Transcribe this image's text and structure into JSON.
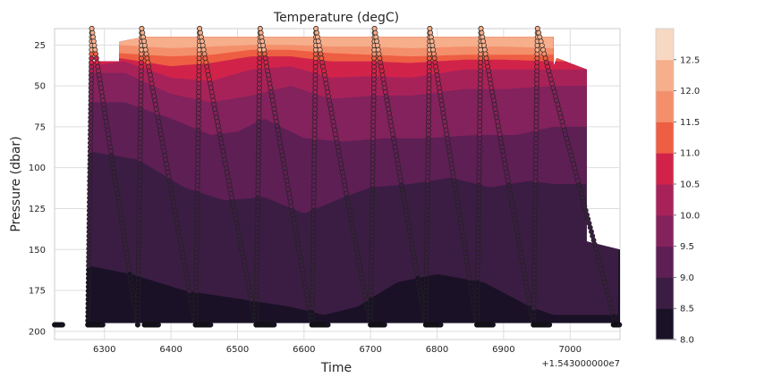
{
  "chart_data": {
    "type": "contour",
    "title": "Temperature (degC)",
    "xlabel": "Time",
    "ylabel": "Pressure (dbar)",
    "x_offset_label": "+1.543000000e7",
    "xlim": [
      6225,
      7075
    ],
    "ylim": [
      205,
      15
    ],
    "y_inverted": true,
    "grid": true,
    "x_ticks": [
      {
        "value": 6300,
        "label": "6300"
      },
      {
        "value": 6400,
        "label": "6400"
      },
      {
        "value": 6500,
        "label": "6500"
      },
      {
        "value": 6600,
        "label": "6600"
      },
      {
        "value": 6700,
        "label": "6700"
      },
      {
        "value": 6800,
        "label": "6800"
      },
      {
        "value": 6900,
        "label": "6900"
      },
      {
        "value": 7000,
        "label": "7000"
      }
    ],
    "y_ticks": [
      {
        "value": 25,
        "label": "25"
      },
      {
        "value": 50,
        "label": "50"
      },
      {
        "value": 75,
        "label": "75"
      },
      {
        "value": 100,
        "label": "100"
      },
      {
        "value": 125,
        "label": "125"
      },
      {
        "value": 150,
        "label": "150"
      },
      {
        "value": 175,
        "label": "175"
      },
      {
        "value": 200,
        "label": "200"
      }
    ],
    "colorbar": {
      "levels": [
        8.0,
        8.5,
        9.0,
        9.5,
        10.0,
        10.5,
        11.0,
        11.5,
        12.0,
        12.5
      ],
      "tick_labels": [
        "8.0",
        "8.5",
        "9.0",
        "9.5",
        "10.0",
        "10.5",
        "11.0",
        "11.5",
        "12.0",
        "12.5"
      ],
      "colors": [
        "#1a1127",
        "#3b1d43",
        "#5e1f55",
        "#83225c",
        "#a8225a",
        "#d1234a",
        "#ee5e42",
        "#f48f6b",
        "#f6ae8b",
        "#f7d8c3"
      ]
    },
    "contour_extent": {
      "x": [
        6277,
        6975
      ],
      "x_left_shoulder": 6322,
      "x_right_shoulder": 6975,
      "x_right_far": 7025,
      "top_pressure": 20,
      "bottom_pressure": 195
    },
    "level_boundaries": [
      {
        "level": 8.5,
        "points": [
          [
            6277,
            160
          ],
          [
            6340,
            165
          ],
          [
            6420,
            175
          ],
          [
            6500,
            180
          ],
          [
            6580,
            185
          ],
          [
            6630,
            190
          ],
          [
            6680,
            185
          ],
          [
            6740,
            170
          ],
          [
            6800,
            165
          ],
          [
            6870,
            170
          ],
          [
            6940,
            185
          ],
          [
            6975,
            190
          ]
        ]
      },
      {
        "level": 9.0,
        "points": [
          [
            6277,
            90
          ],
          [
            6350,
            95
          ],
          [
            6420,
            112
          ],
          [
            6480,
            120
          ],
          [
            6540,
            118
          ],
          [
            6600,
            128
          ],
          [
            6660,
            118
          ],
          [
            6700,
            112
          ],
          [
            6760,
            110
          ],
          [
            6820,
            106
          ],
          [
            6880,
            112
          ],
          [
            6940,
            108
          ],
          [
            6975,
            110
          ]
        ]
      },
      {
        "level": 9.5,
        "points": [
          [
            6277,
            60
          ],
          [
            6330,
            60
          ],
          [
            6400,
            70
          ],
          [
            6460,
            80
          ],
          [
            6500,
            78
          ],
          [
            6540,
            70
          ],
          [
            6600,
            82
          ],
          [
            6660,
            84
          ],
          [
            6720,
            82
          ],
          [
            6780,
            82
          ],
          [
            6860,
            80
          ],
          [
            6920,
            80
          ],
          [
            6975,
            75
          ]
        ]
      },
      {
        "level": 10.0,
        "points": [
          [
            6277,
            42
          ],
          [
            6330,
            42
          ],
          [
            6400,
            55
          ],
          [
            6460,
            60
          ],
          [
            6520,
            56
          ],
          [
            6580,
            50
          ],
          [
            6640,
            58
          ],
          [
            6700,
            56
          ],
          [
            6760,
            56
          ],
          [
            6840,
            52
          ],
          [
            6900,
            52
          ],
          [
            6975,
            50
          ]
        ]
      },
      {
        "level": 10.5,
        "points": [
          [
            6277,
            38
          ],
          [
            6330,
            35
          ],
          [
            6400,
            45
          ],
          [
            6460,
            47
          ],
          [
            6520,
            40
          ],
          [
            6580,
            38
          ],
          [
            6640,
            45
          ],
          [
            6700,
            44
          ],
          [
            6760,
            45
          ],
          [
            6840,
            40
          ],
          [
            6900,
            40
          ],
          [
            6975,
            40
          ]
        ]
      },
      {
        "level": 11.0,
        "points": [
          [
            6322,
            33
          ],
          [
            6400,
            38
          ],
          [
            6460,
            36
          ],
          [
            6520,
            32
          ],
          [
            6580,
            32
          ],
          [
            6640,
            35
          ],
          [
            6700,
            35
          ],
          [
            6760,
            36
          ],
          [
            6840,
            34
          ],
          [
            6900,
            34
          ],
          [
            6975,
            35
          ]
        ]
      },
      {
        "level": 11.5,
        "points": [
          [
            6322,
            30
          ],
          [
            6400,
            32
          ],
          [
            6460,
            31
          ],
          [
            6520,
            28
          ],
          [
            6580,
            28
          ],
          [
            6640,
            30
          ],
          [
            6700,
            31
          ],
          [
            6760,
            32
          ],
          [
            6840,
            31
          ],
          [
            6900,
            31
          ],
          [
            6975,
            31
          ]
        ]
      },
      {
        "level": 12.0,
        "points": [
          [
            6322,
            25
          ],
          [
            6400,
            27
          ],
          [
            6460,
            26
          ],
          [
            6520,
            25
          ],
          [
            6580,
            25
          ],
          [
            6640,
            26
          ],
          [
            6700,
            26
          ],
          [
            6760,
            27
          ],
          [
            6840,
            26
          ],
          [
            6900,
            26
          ],
          [
            6975,
            27
          ]
        ]
      }
    ],
    "profiles": [
      {
        "surface_time": 6250,
        "bottom_time_start": 6225,
        "bottom_time_end": 6237,
        "surface_temp": 12.3
      },
      {
        "surface_time": 6332,
        "bottom_time_start": 6275,
        "bottom_time_end": 6298,
        "surface_temp": 12.6
      },
      {
        "surface_time": 6420,
        "bottom_time_start": 6360,
        "bottom_time_end": 6382,
        "surface_temp": 12.6
      },
      {
        "surface_time": 6508,
        "bottom_time_start": 6437,
        "bottom_time_end": 6460,
        "surface_temp": 12.7
      },
      {
        "surface_time": 6605,
        "bottom_time_start": 6528,
        "bottom_time_end": 6555,
        "surface_temp": 12.8
      },
      {
        "surface_time": 6690,
        "bottom_time_start": 6612,
        "bottom_time_end": 6637,
        "surface_temp": 12.7
      },
      {
        "surface_time": 6775,
        "bottom_time_start": 6700,
        "bottom_time_end": 6722,
        "surface_temp": 12.6
      },
      {
        "surface_time": 6858,
        "bottom_time_start": 6783,
        "bottom_time_end": 6806,
        "surface_temp": 12.5
      },
      {
        "surface_time": 6930,
        "bottom_time_start": 6860,
        "bottom_time_end": 6885,
        "surface_temp": 12.5
      },
      {
        "surface_time": 7000,
        "bottom_time_start": 6945,
        "bottom_time_end": 6970,
        "surface_temp": 12.5
      },
      {
        "surface_time": 7075,
        "bottom_time_start": 7065,
        "bottom_time_end": 7075,
        "surface_temp": 12.4
      }
    ],
    "profile_vertices": [
      {
        "time": 6275,
        "pressure": 196,
        "dir": "up"
      },
      {
        "time": 6281,
        "pressure": 15,
        "dir": "down"
      },
      {
        "time": 6350,
        "pressure": 196,
        "dir": "up"
      },
      {
        "time": 6356,
        "pressure": 15,
        "dir": "down"
      },
      {
        "time": 6437,
        "pressure": 196,
        "dir": "up"
      },
      {
        "time": 6443,
        "pressure": 15,
        "dir": "down"
      },
      {
        "time": 6528,
        "pressure": 196,
        "dir": "up"
      },
      {
        "time": 6534,
        "pressure": 15,
        "dir": "down"
      },
      {
        "time": 6612,
        "pressure": 196,
        "dir": "up"
      },
      {
        "time": 6618,
        "pressure": 15,
        "dir": "down"
      },
      {
        "time": 6700,
        "pressure": 196,
        "dir": "up"
      },
      {
        "time": 6706,
        "pressure": 15,
        "dir": "down"
      },
      {
        "time": 6783,
        "pressure": 196,
        "dir": "up"
      },
      {
        "time": 6789,
        "pressure": 15,
        "dir": "down"
      },
      {
        "time": 6860,
        "pressure": 196,
        "dir": "up"
      },
      {
        "time": 6866,
        "pressure": 15,
        "dir": "down"
      },
      {
        "time": 6945,
        "pressure": 196,
        "dir": "up"
      },
      {
        "time": 6951,
        "pressure": 15,
        "dir": "down"
      },
      {
        "time": 7069,
        "pressure": 196,
        "dir": "up"
      }
    ]
  }
}
